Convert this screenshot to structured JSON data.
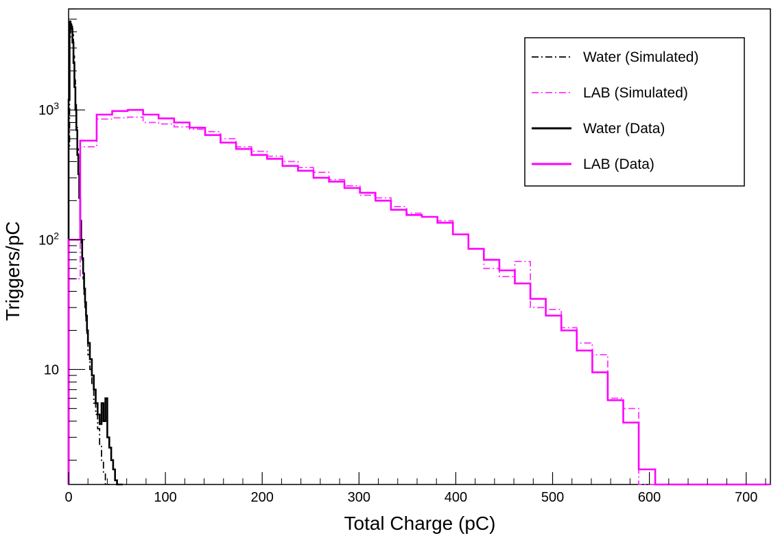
{
  "chart_data": {
    "type": "line",
    "step": true,
    "xlabel": "Total Charge (pC)",
    "ylabel": "Triggers/pC",
    "xlim": [
      0,
      725
    ],
    "ylim": [
      1.3,
      6000
    ],
    "yscale": "log",
    "x_ticks": [
      {
        "value": 0,
        "label": "0"
      },
      {
        "value": 100,
        "label": "100"
      },
      {
        "value": 200,
        "label": "200"
      },
      {
        "value": 300,
        "label": "300"
      },
      {
        "value": 400,
        "label": "400"
      },
      {
        "value": 500,
        "label": "500"
      },
      {
        "value": 600,
        "label": "600"
      },
      {
        "value": 700,
        "label": "700"
      }
    ],
    "y_ticks": [
      {
        "value": 10,
        "label": "10",
        "sup": ""
      },
      {
        "value": 100,
        "label": "10",
        "sup": "2"
      },
      {
        "value": 1000,
        "label": "10",
        "sup": "3"
      }
    ],
    "legend_position": "top-right",
    "series": [
      {
        "name": "Water (Simulated)",
        "color": "#000000",
        "style": "dashdot",
        "edges": [
          0,
          1,
          2,
          3,
          4,
          5,
          6,
          7,
          8,
          9,
          10,
          11,
          12,
          13,
          14,
          15,
          16,
          17,
          18,
          19,
          20,
          22,
          24,
          26,
          28,
          30,
          32,
          34,
          36,
          38,
          40,
          42
        ],
        "values": [
          500,
          3500,
          4600,
          4400,
          3800,
          2600,
          1700,
          1100,
          750,
          500,
          320,
          220,
          140,
          95,
          68,
          50,
          38,
          30,
          23,
          18,
          13,
          10,
          7.5,
          5.5,
          4.5,
          3.5,
          2.6,
          2,
          1.6,
          1.3,
          1.2
        ]
      },
      {
        "name": "LAB (Simulated)",
        "color": "#ff33ff",
        "style": "dashdot",
        "edges": [
          0,
          12,
          29,
          45,
          61,
          77,
          93,
          109,
          125,
          141,
          157,
          173,
          189,
          205,
          221,
          237,
          253,
          269,
          285,
          301,
          317,
          333,
          349,
          365,
          381,
          397,
          413,
          429,
          445,
          461,
          477,
          493,
          509,
          525,
          541,
          557,
          573,
          589,
          606,
          725
        ],
        "values": [
          50,
          520,
          850,
          870,
          880,
          800,
          780,
          740,
          710,
          680,
          600,
          520,
          480,
          440,
          400,
          360,
          330,
          290,
          260,
          220,
          210,
          180,
          160,
          150,
          140,
          110,
          85,
          60,
          52,
          68,
          30,
          29,
          21,
          16,
          13,
          6,
          5,
          1.2,
          1.2
        ]
      },
      {
        "name": "Water (Data)",
        "color": "#000000",
        "style": "solid",
        "edges": [
          0,
          1,
          2,
          3,
          4,
          5,
          6,
          7,
          8,
          9,
          10,
          11,
          12,
          13,
          14,
          15,
          16,
          17,
          18,
          19,
          20,
          22,
          24,
          26,
          28,
          30,
          32,
          34,
          36,
          38,
          40,
          42,
          44,
          46,
          48,
          50,
          52,
          54,
          56
        ],
        "values": [
          1200,
          4800,
          4500,
          4200,
          3300,
          2300,
          1500,
          1000,
          700,
          450,
          320,
          210,
          140,
          100,
          72,
          55,
          42,
          33,
          26,
          20,
          16,
          12,
          9,
          7,
          5.5,
          4.5,
          3.8,
          5.5,
          4,
          6,
          3,
          2.5,
          2,
          1.7,
          1.4,
          1.3,
          1.2,
          1.25
        ]
      },
      {
        "name": "LAB (Data)",
        "color": "#ff00ff",
        "style": "solid",
        "edges": [
          0,
          12,
          29,
          45,
          61,
          77,
          93,
          109,
          125,
          141,
          157,
          173,
          189,
          205,
          221,
          237,
          253,
          269,
          285,
          301,
          317,
          333,
          349,
          365,
          381,
          397,
          413,
          429,
          445,
          461,
          477,
          493,
          509,
          525,
          541,
          557,
          573,
          589,
          606,
          725
        ],
        "values": [
          100,
          580,
          920,
          980,
          1000,
          920,
          860,
          800,
          730,
          640,
          560,
          500,
          450,
          420,
          370,
          340,
          300,
          280,
          250,
          230,
          200,
          170,
          155,
          150,
          135,
          110,
          85,
          70,
          58,
          46,
          35,
          26,
          20,
          14,
          9.5,
          5.8,
          3.9,
          1.7,
          1.2
        ]
      }
    ]
  }
}
